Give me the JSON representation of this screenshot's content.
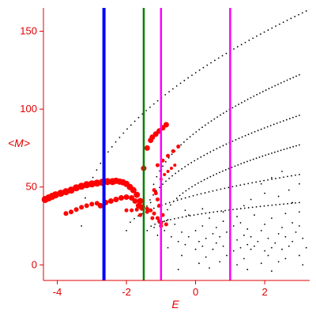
{
  "chart_data": {
    "type": "scatter",
    "title": "",
    "xlabel": "E",
    "ylabel": "<M>",
    "xlim": [
      -4.4,
      3.3
    ],
    "ylim": [
      -10,
      165
    ],
    "xticks": [
      -4,
      -2,
      0,
      2
    ],
    "yticks": [
      0,
      50,
      100,
      150
    ],
    "axis_color": "#e00000",
    "vertical_lines": [
      {
        "x": -2.65,
        "color": "#0000ff"
      },
      {
        "x": -1.5,
        "color": "#008000"
      },
      {
        "x": -1.0,
        "color": "#ff00ff"
      },
      {
        "x": 1.0,
        "color": "#ff00ff"
      }
    ],
    "bands": [
      {
        "x0": -3.3,
        "y0": 25,
        "x1": 3.2,
        "y1": 163,
        "n": 60
      },
      {
        "x0": -1.3,
        "y0": 40,
        "x1": 3.0,
        "y1": 122,
        "n": 50
      },
      {
        "x0": -1.5,
        "y0": 28,
        "x1": 3.0,
        "y1": 96,
        "n": 50
      },
      {
        "x0": -0.9,
        "y0": 28,
        "x1": 3.0,
        "y1": 77,
        "n": 45
      },
      {
        "x0": -2.0,
        "y0": 22,
        "x1": 3.0,
        "y1": 58,
        "n": 45
      },
      {
        "x0": -1.4,
        "y0": 22,
        "x1": 3.0,
        "y1": 40,
        "n": 40
      }
    ],
    "scatter": [
      [
        -0.2,
        32
      ],
      [
        0.4,
        30
      ],
      [
        0.8,
        28
      ],
      [
        1.3,
        27
      ],
      [
        1.7,
        32
      ],
      [
        2.2,
        30
      ],
      [
        2.8,
        27
      ],
      [
        -0.6,
        26
      ],
      [
        0.2,
        25
      ],
      [
        0.6,
        24
      ],
      [
        1.1,
        25
      ],
      [
        1.5,
        23
      ],
      [
        2.0,
        26
      ],
      [
        2.5,
        24
      ],
      [
        3.0,
        25
      ],
      [
        -0.9,
        22
      ],
      [
        -0.4,
        21
      ],
      [
        0.0,
        22
      ],
      [
        0.5,
        20
      ],
      [
        0.9,
        21
      ],
      [
        1.4,
        19
      ],
      [
        1.9,
        22
      ],
      [
        2.4,
        20
      ],
      [
        2.9,
        21
      ],
      [
        -1.1,
        19
      ],
      [
        -0.7,
        18
      ],
      [
        -0.2,
        18
      ],
      [
        0.3,
        17
      ],
      [
        0.7,
        18
      ],
      [
        1.2,
        16
      ],
      [
        1.6,
        18
      ],
      [
        2.1,
        17
      ],
      [
        2.6,
        18
      ],
      [
        3.1,
        17
      ],
      [
        -1.0,
        16
      ],
      [
        -0.5,
        15
      ],
      [
        0.1,
        15
      ],
      [
        0.6,
        14
      ],
      [
        1.0,
        15
      ],
      [
        1.5,
        13
      ],
      [
        1.8,
        15
      ],
      [
        2.3,
        14
      ],
      [
        2.8,
        15
      ],
      [
        -0.3,
        13
      ],
      [
        0.2,
        12
      ],
      [
        0.8,
        12
      ],
      [
        1.3,
        11
      ],
      [
        1.7,
        12
      ],
      [
        2.2,
        11
      ],
      [
        2.7,
        12
      ],
      [
        3.2,
        11
      ],
      [
        -0.8,
        11
      ],
      [
        0.0,
        10
      ],
      [
        0.5,
        10
      ],
      [
        1.1,
        9
      ],
      [
        1.6,
        10
      ],
      [
        2.0,
        9
      ],
      [
        2.5,
        10
      ],
      [
        -0.4,
        6
      ],
      [
        0.3,
        5
      ],
      [
        0.9,
        6
      ],
      [
        1.4,
        4
      ],
      [
        2.1,
        6
      ],
      [
        2.6,
        4
      ],
      [
        3.0,
        6
      ],
      [
        0.1,
        1
      ],
      [
        0.7,
        2
      ],
      [
        1.2,
        0
      ],
      [
        1.9,
        1
      ],
      [
        2.4,
        2
      ],
      [
        3.1,
        0
      ],
      [
        -0.5,
        -3
      ],
      [
        0.4,
        -2
      ],
      [
        1.5,
        -3
      ],
      [
        2.2,
        -4
      ],
      [
        -1.2,
        24
      ],
      [
        -0.8,
        29
      ],
      [
        -0.3,
        35
      ],
      [
        0.2,
        36
      ],
      [
        0.8,
        34
      ],
      [
        1.2,
        31
      ],
      [
        2.6,
        33
      ],
      [
        3.0,
        34
      ],
      [
        1.6,
        42
      ],
      [
        2.0,
        46
      ],
      [
        2.4,
        44
      ],
      [
        2.7,
        48
      ],
      [
        3.0,
        52
      ],
      [
        2.2,
        56
      ],
      [
        2.5,
        60
      ],
      [
        1.9,
        52
      ],
      [
        1.4,
        38
      ],
      [
        2.8,
        40
      ]
    ],
    "red_series": [
      {
        "name": "",
        "size": 4.5,
        "points": [
          [
            -4.35,
            42
          ],
          [
            -4.25,
            43
          ],
          [
            -4.15,
            44
          ],
          [
            -4.05,
            45
          ],
          [
            -3.9,
            46
          ],
          [
            -3.75,
            47
          ],
          [
            -3.6,
            48
          ],
          [
            -3.45,
            49.5
          ],
          [
            -3.3,
            50.5
          ],
          [
            -3.15,
            51.5
          ],
          [
            -3.0,
            52
          ],
          [
            -2.85,
            52.5
          ],
          [
            -2.7,
            53
          ],
          [
            -2.55,
            53.5
          ],
          [
            -2.4,
            53.5
          ]
        ]
      },
      {
        "name": "",
        "size": 4,
        "points": [
          [
            -2.3,
            54
          ],
          [
            -2.2,
            53.5
          ],
          [
            -2.1,
            53
          ],
          [
            -2.0,
            52
          ],
          [
            -1.9,
            50
          ],
          [
            -1.8,
            48
          ],
          [
            -1.7,
            45
          ],
          [
            -1.6,
            41
          ],
          [
            -1.55,
            37
          ]
        ]
      },
      {
        "name": "",
        "size": 3.5,
        "points": [
          [
            -2.75,
            38
          ],
          [
            -2.6,
            40
          ],
          [
            -2.45,
            41
          ],
          [
            -2.3,
            42
          ],
          [
            -2.15,
            43
          ],
          [
            -2.0,
            43.5
          ],
          [
            -1.85,
            43
          ],
          [
            -1.75,
            41
          ],
          [
            -1.65,
            38
          ]
        ]
      },
      {
        "name": "",
        "size": 3,
        "points": [
          [
            -3.75,
            33
          ],
          [
            -3.6,
            34
          ],
          [
            -3.45,
            35.5
          ],
          [
            -3.3,
            37
          ],
          [
            -3.15,
            38
          ],
          [
            -3.0,
            39
          ],
          [
            -2.85,
            39.5
          ]
        ]
      },
      {
        "name": "",
        "size": 2.5,
        "points": [
          [
            -2.0,
            35
          ],
          [
            -1.85,
            35
          ],
          [
            -1.7,
            35.5
          ],
          [
            -1.55,
            36
          ],
          [
            -1.4,
            36
          ],
          [
            -1.3,
            35
          ],
          [
            -1.2,
            33
          ],
          [
            -1.1,
            30
          ],
          [
            -1.05,
            28
          ],
          [
            -1.0,
            25
          ]
        ]
      },
      {
        "name": "",
        "size": 3.5,
        "points": [
          [
            -1.5,
            62
          ],
          [
            -1.4,
            75
          ],
          [
            -1.3,
            80
          ],
          [
            -1.25,
            82
          ],
          [
            -1.15,
            84
          ],
          [
            -1.05,
            86
          ],
          [
            -0.95,
            88
          ],
          [
            -0.85,
            90
          ]
        ]
      },
      {
        "name": "",
        "size": 2.5,
        "points": [
          [
            -1.1,
            64
          ],
          [
            -0.95,
            67
          ],
          [
            -0.8,
            70
          ],
          [
            -0.65,
            73
          ],
          [
            -0.5,
            76
          ]
        ]
      },
      {
        "name": "",
        "size": 2,
        "points": [
          [
            -1.0,
            55
          ],
          [
            -0.9,
            58
          ],
          [
            -0.8,
            60
          ],
          [
            -0.7,
            62
          ],
          [
            -0.6,
            64
          ]
        ]
      },
      {
        "name": "",
        "size": 2.5,
        "points": [
          [
            -1.2,
            48
          ],
          [
            -1.15,
            46
          ],
          [
            -1.1,
            42
          ],
          [
            -1.05,
            38
          ],
          [
            -0.95,
            32
          ],
          [
            -0.85,
            26
          ]
        ]
      },
      {
        "name": "",
        "size": 2.5,
        "points": [
          [
            -1.6,
            32
          ],
          [
            -1.4,
            34
          ],
          [
            -1.25,
            30
          ],
          [
            -1.0,
            27
          ]
        ]
      }
    ]
  }
}
